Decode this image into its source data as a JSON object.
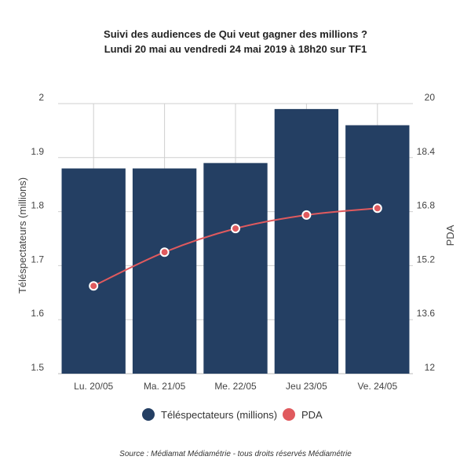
{
  "chart_data": {
    "type": "bar",
    "title": "Suivi des audiences de Qui veut gagner des millions ?",
    "subtitle": "Lundi 20 mai au vendredi 24 mai 2019 à 18h20 sur TF1",
    "categories": [
      "Lu. 20/05",
      "Ma. 21/05",
      "Me. 22/05",
      "Jeu 23/05",
      "Ve. 24/05"
    ],
    "series": [
      {
        "name": "Téléspectateurs (millions)",
        "type": "bar",
        "axis": "left",
        "color": "#243f63",
        "values": [
          1.88,
          1.88,
          1.89,
          1.99,
          1.96
        ]
      },
      {
        "name": "PDA",
        "type": "line",
        "axis": "right",
        "color": "#e05a5e",
        "values": [
          14.6,
          15.6,
          16.3,
          16.7,
          16.9
        ]
      }
    ],
    "ylabel": "Téléspectateurs (millions)",
    "y2label": "PDA",
    "ylim": [
      1.5,
      2
    ],
    "y2lim": [
      12,
      20
    ],
    "yticks": [
      "1.5",
      "1.6",
      "1.7",
      "1.8",
      "1.9",
      "2"
    ],
    "y2ticks": [
      "12",
      "13.6",
      "15.2",
      "16.8",
      "18.4",
      "20"
    ],
    "grid": true,
    "legend_position": "bottom",
    "source": "Source : Médiamat Médiamétrie - tous droits réservés Médiamétrie"
  }
}
